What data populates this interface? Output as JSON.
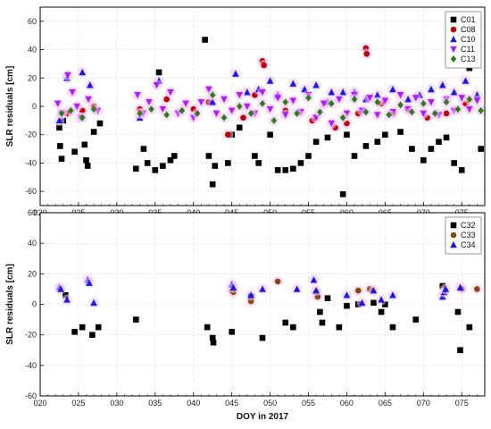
{
  "chart_data": [
    {
      "type": "scatter",
      "title": "",
      "xlabel": "",
      "ylabel": "SLR residuals [cm]",
      "xlim": [
        20,
        78
      ],
      "ylim": [
        -70,
        70
      ],
      "x_ticks": [
        "020",
        "025",
        "030",
        "035",
        "040",
        "045",
        "050",
        "055",
        "060",
        "065",
        "070",
        "075"
      ],
      "y_ticks": [
        "-60",
        "-40",
        "-20",
        "0",
        "20",
        "40",
        "60"
      ],
      "grid": true,
      "legend_position": "top-right",
      "series": [
        {
          "name": "C01",
          "marker": "square",
          "color": "#000000",
          "points": [
            [
              22.5,
              -15
            ],
            [
              22.6,
              -28
            ],
            [
              22.8,
              -37
            ],
            [
              23.0,
              -10
            ],
            [
              24.5,
              -32
            ],
            [
              25.8,
              -27
            ],
            [
              26.0,
              -38
            ],
            [
              26.2,
              -42
            ],
            [
              27.0,
              -18
            ],
            [
              27.8,
              -12
            ],
            [
              32.5,
              -44
            ],
            [
              33.5,
              -30
            ],
            [
              34.0,
              -40
            ],
            [
              35.0,
              -45
            ],
            [
              35.5,
              24
            ],
            [
              36.0,
              -42
            ],
            [
              37.0,
              -38
            ],
            [
              37.5,
              -35
            ],
            [
              41.5,
              47
            ],
            [
              42.0,
              -35
            ],
            [
              42.5,
              -55
            ],
            [
              42.8,
              -42
            ],
            [
              44.5,
              -40
            ],
            [
              45.0,
              -20
            ],
            [
              46.0,
              -15
            ],
            [
              48.0,
              -35
            ],
            [
              48.5,
              -40
            ],
            [
              50.0,
              -20
            ],
            [
              51.0,
              -45
            ],
            [
              52.0,
              -45
            ],
            [
              53.0,
              -44
            ],
            [
              54.0,
              -40
            ],
            [
              55.0,
              -35
            ],
            [
              56.0,
              -25
            ],
            [
              57.5,
              -22
            ],
            [
              59.5,
              -62
            ],
            [
              60.0,
              -20
            ],
            [
              61.0,
              -35
            ],
            [
              62.5,
              -28
            ],
            [
              64.0,
              -25
            ],
            [
              65.0,
              -20
            ],
            [
              67.0,
              -18
            ],
            [
              68.5,
              -30
            ],
            [
              70.0,
              -38
            ],
            [
              71.0,
              -30
            ],
            [
              72.0,
              -25
            ],
            [
              73.0,
              -22
            ],
            [
              74.0,
              -40
            ],
            [
              75.0,
              -45
            ],
            [
              76.0,
              27
            ],
            [
              77.5,
              -30
            ]
          ]
        },
        {
          "name": "C08",
          "marker": "circle",
          "color": "#c00000",
          "points": [
            [
              23.5,
              -5
            ],
            [
              25.5,
              -3
            ],
            [
              27.0,
              0
            ],
            [
              33.0,
              -2
            ],
            [
              36.5,
              5
            ],
            [
              40.0,
              -2
            ],
            [
              42.0,
              3
            ],
            [
              44.5,
              -20
            ],
            [
              46.5,
              -8
            ],
            [
              48.0,
              8
            ],
            [
              49.0,
              32
            ],
            [
              49.2,
              29
            ],
            [
              52.0,
              -3
            ],
            [
              55.5,
              -10
            ],
            [
              58.5,
              -15
            ],
            [
              60.0,
              -12
            ],
            [
              61.5,
              -5
            ],
            [
              62.5,
              41
            ],
            [
              62.6,
              37
            ],
            [
              64.5,
              2
            ],
            [
              66.0,
              -5
            ],
            [
              68.0,
              -2
            ],
            [
              70.5,
              -8
            ],
            [
              73.0,
              -5
            ],
            [
              75.5,
              2
            ]
          ]
        },
        {
          "name": "C10",
          "marker": "triangle-up",
          "color": "#1a1ae6",
          "points": [
            [
              22.5,
              -10
            ],
            [
              23.5,
              20
            ],
            [
              25.5,
              24
            ],
            [
              26.5,
              15
            ],
            [
              33.0,
              -8
            ],
            [
              35.5,
              18
            ],
            [
              42.5,
              3
            ],
            [
              45.5,
              23
            ],
            [
              47.0,
              10
            ],
            [
              48.5,
              12
            ],
            [
              50.0,
              18
            ],
            [
              51.0,
              8
            ],
            [
              53.0,
              16
            ],
            [
              54.5,
              12
            ],
            [
              56.0,
              15
            ],
            [
              57.5,
              3
            ],
            [
              58.0,
              10
            ],
            [
              59.5,
              10
            ],
            [
              61.0,
              10
            ],
            [
              62.5,
              5
            ],
            [
              64.0,
              8
            ],
            [
              66.0,
              12
            ],
            [
              68.0,
              5
            ],
            [
              69.5,
              8
            ],
            [
              71.0,
              12
            ],
            [
              72.5,
              15
            ],
            [
              74.0,
              10
            ],
            [
              75.5,
              18
            ],
            [
              77.0,
              8
            ]
          ]
        },
        {
          "name": "C11",
          "marker": "triangle-down",
          "color": "#b21bff",
          "points": [
            [
              22.3,
              2
            ],
            [
              22.8,
              -5
            ],
            [
              23.6,
              22
            ],
            [
              24.2,
              10
            ],
            [
              24.8,
              0
            ],
            [
              25.3,
              -8
            ],
            [
              26.3,
              5
            ],
            [
              27.5,
              -3
            ],
            [
              32.7,
              8
            ],
            [
              33.4,
              -5
            ],
            [
              34.2,
              3
            ],
            [
              35.2,
              15
            ],
            [
              36.0,
              -2
            ],
            [
              37.0,
              10
            ],
            [
              38.0,
              -5
            ],
            [
              39.0,
              2
            ],
            [
              40.0,
              -8
            ],
            [
              41.0,
              3
            ],
            [
              42.0,
              12
            ],
            [
              43.0,
              -5
            ],
            [
              44.0,
              5
            ],
            [
              45.0,
              -3
            ],
            [
              46.0,
              8
            ],
            [
              47.0,
              0
            ],
            [
              48.0,
              -5
            ],
            [
              49.0,
              10
            ],
            [
              50.0,
              -2
            ],
            [
              51.0,
              6
            ],
            [
              52.0,
              -6
            ],
            [
              53.0,
              4
            ],
            [
              54.0,
              -4
            ],
            [
              55.0,
              8
            ],
            [
              56.0,
              -8
            ],
            [
              57.0,
              2
            ],
            [
              58.0,
              -12
            ],
            [
              59.0,
              5
            ],
            [
              60.0,
              -5
            ],
            [
              61.0,
              8
            ],
            [
              62.0,
              -3
            ],
            [
              63.0,
              6
            ],
            [
              64.0,
              -6
            ],
            [
              65.0,
              4
            ],
            [
              66.0,
              -4
            ],
            [
              67.0,
              8
            ],
            [
              68.0,
              -2
            ],
            [
              69.0,
              6
            ],
            [
              70.0,
              -5
            ],
            [
              71.0,
              3
            ],
            [
              72.0,
              -6
            ],
            [
              73.0,
              5
            ],
            [
              74.0,
              -3
            ],
            [
              75.0,
              6
            ],
            [
              76.0,
              -2
            ],
            [
              77.0,
              4
            ]
          ]
        },
        {
          "name": "C13",
          "marker": "diamond",
          "color": "#2e7d1a",
          "points": [
            [
              22.8,
              -5
            ],
            [
              24.0,
              -3
            ],
            [
              25.5,
              -8
            ],
            [
              27.0,
              -2
            ],
            [
              33.0,
              -5
            ],
            [
              34.5,
              -2
            ],
            [
              36.5,
              -6
            ],
            [
              38.5,
              -3
            ],
            [
              40.5,
              -5
            ],
            [
              42.5,
              8
            ],
            [
              44.0,
              -8
            ],
            [
              46.0,
              0
            ],
            [
              47.5,
              -5
            ],
            [
              49.0,
              2
            ],
            [
              50.5,
              -10
            ],
            [
              52.0,
              3
            ],
            [
              53.5,
              -5
            ],
            [
              55.0,
              6
            ],
            [
              56.5,
              -4
            ],
            [
              58.0,
              2
            ],
            [
              59.5,
              -8
            ],
            [
              61.0,
              5
            ],
            [
              62.5,
              -4
            ],
            [
              64.0,
              3
            ],
            [
              65.5,
              -6
            ],
            [
              67.0,
              1
            ],
            [
              68.5,
              -4
            ],
            [
              70.0,
              2
            ],
            [
              71.5,
              -5
            ],
            [
              73.0,
              3
            ],
            [
              74.5,
              -2
            ],
            [
              76.0,
              5
            ],
            [
              77.5,
              -3
            ]
          ]
        }
      ]
    },
    {
      "type": "scatter",
      "title": "",
      "xlabel": "DOY in 2017",
      "ylabel": "SLR residuals [cm]",
      "xlim": [
        20,
        78
      ],
      "ylim": [
        -60,
        60
      ],
      "x_ticks": [
        "020",
        "025",
        "030",
        "035",
        "040",
        "045",
        "050",
        "055",
        "060",
        "065",
        "070",
        "075"
      ],
      "y_ticks": [
        "-60",
        "-40",
        "-20",
        "0",
        "20",
        "40",
        "60"
      ],
      "grid": true,
      "legend_position": "top-right",
      "series": [
        {
          "name": "C32",
          "marker": "square",
          "color": "#000000",
          "points": [
            [
              23.3,
              6
            ],
            [
              24.5,
              -18
            ],
            [
              25.5,
              -15
            ],
            [
              26.8,
              -20
            ],
            [
              27.6,
              -15
            ],
            [
              32.5,
              -10
            ],
            [
              41.8,
              -15
            ],
            [
              42.5,
              -22
            ],
            [
              42.6,
              -25
            ],
            [
              45.0,
              -18
            ],
            [
              47.5,
              5
            ],
            [
              49.0,
              -22
            ],
            [
              52.0,
              -12
            ],
            [
              53.0,
              -15
            ],
            [
              56.5,
              -5
            ],
            [
              56.8,
              -12
            ],
            [
              57.5,
              4
            ],
            [
              59.0,
              -15
            ],
            [
              60.0,
              -1
            ],
            [
              61.5,
              0
            ],
            [
              63.5,
              1
            ],
            [
              64.5,
              -5
            ],
            [
              65.0,
              0
            ],
            [
              66.0,
              -15
            ],
            [
              69.0,
              -10
            ],
            [
              72.5,
              12
            ],
            [
              74.5,
              -5
            ],
            [
              74.8,
              -30
            ],
            [
              76.0,
              -15
            ]
          ]
        },
        {
          "name": "C33",
          "marker": "circle",
          "color": "#8b4513",
          "points": [
            [
              45.0,
              9
            ],
            [
              45.2,
              8
            ],
            [
              47.5,
              2
            ],
            [
              51.0,
              15
            ],
            [
              56.0,
              8
            ],
            [
              56.2,
              5
            ],
            [
              61.5,
              9
            ],
            [
              63.0,
              10
            ],
            [
              75.0,
              10
            ],
            [
              77.0,
              10
            ]
          ]
        },
        {
          "name": "C34",
          "marker": "triangle-up",
          "color": "#1a1ae6",
          "points": [
            [
              22.5,
              11
            ],
            [
              22.7,
              10
            ],
            [
              23.5,
              3
            ],
            [
              26.2,
              16
            ],
            [
              26.4,
              14
            ],
            [
              27.0,
              1
            ],
            [
              45.0,
              13
            ],
            [
              45.2,
              11
            ],
            [
              47.5,
              6
            ],
            [
              49.0,
              10
            ],
            [
              53.5,
              10
            ],
            [
              55.7,
              16
            ],
            [
              56.0,
              9
            ],
            [
              60.0,
              6
            ],
            [
              62.0,
              1
            ],
            [
              63.5,
              9
            ],
            [
              64.5,
              3
            ],
            [
              66.0,
              6
            ],
            [
              72.5,
              5
            ],
            [
              72.7,
              8
            ],
            [
              72.9,
              10
            ],
            [
              74.8,
              11
            ]
          ]
        }
      ]
    }
  ]
}
